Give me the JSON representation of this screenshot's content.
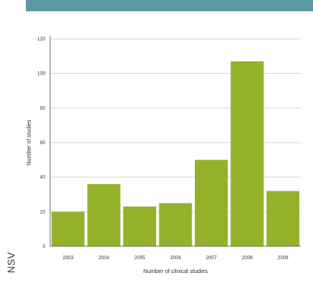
{
  "side_label": "NSV",
  "chart_data": {
    "type": "bar",
    "title": "",
    "xlabel": "Number of clinical studies",
    "ylabel": "Number of studies",
    "categories": [
      "2003",
      "2004",
      "2005",
      "2006",
      "2007",
      "2008",
      "2009"
    ],
    "values": [
      20,
      36,
      23,
      25,
      50,
      107,
      32
    ],
    "ylim": [
      0,
      120
    ],
    "yticks": [
      0,
      20,
      40,
      60,
      80,
      100,
      120
    ],
    "grid": true,
    "legend": "none",
    "colors": {
      "bar": "#93b22a",
      "grid": "#d8d8d8",
      "axis": "#777777",
      "text": "#333333",
      "band": "#5b9aa0"
    }
  }
}
